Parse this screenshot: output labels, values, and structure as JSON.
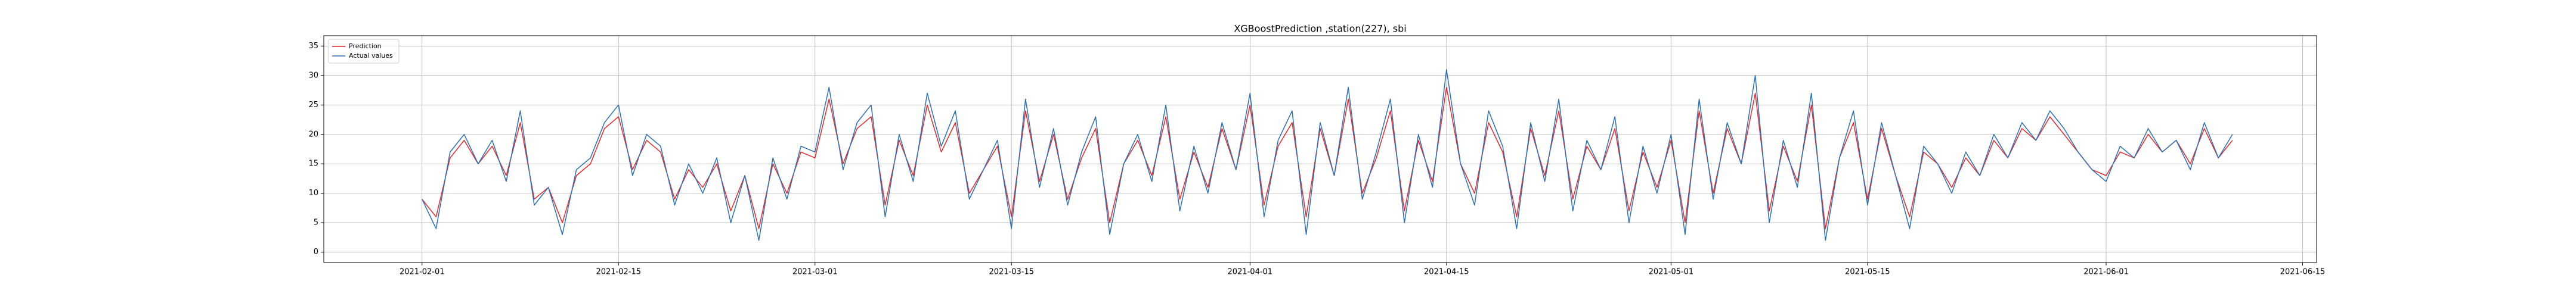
{
  "chart_data": {
    "type": "line",
    "title": "XGBoostPrediction ,station(227), sbi",
    "x": [
      "2021-02-01",
      "2021-02-02",
      "2021-02-03",
      "2021-02-04",
      "2021-02-05",
      "2021-02-06",
      "2021-02-07",
      "2021-02-08",
      "2021-02-09",
      "2021-02-10",
      "2021-02-11",
      "2021-02-12",
      "2021-02-13",
      "2021-02-14",
      "2021-02-15",
      "2021-02-16",
      "2021-02-17",
      "2021-02-18",
      "2021-02-19",
      "2021-02-20",
      "2021-02-21",
      "2021-02-22",
      "2021-02-23",
      "2021-02-24",
      "2021-02-25",
      "2021-02-26",
      "2021-02-27",
      "2021-02-28",
      "2021-03-01",
      "2021-03-02",
      "2021-03-03",
      "2021-03-04",
      "2021-03-05",
      "2021-03-06",
      "2021-03-07",
      "2021-03-08",
      "2021-03-09",
      "2021-03-10",
      "2021-03-11",
      "2021-03-12",
      "2021-03-13",
      "2021-03-14",
      "2021-03-15",
      "2021-03-16",
      "2021-03-17",
      "2021-03-18",
      "2021-03-19",
      "2021-03-20",
      "2021-03-21",
      "2021-03-22",
      "2021-03-23",
      "2021-03-24",
      "2021-03-25",
      "2021-03-26",
      "2021-03-27",
      "2021-03-28",
      "2021-03-29",
      "2021-03-30",
      "2021-03-31",
      "2021-04-01",
      "2021-04-02",
      "2021-04-03",
      "2021-04-04",
      "2021-04-05",
      "2021-04-06",
      "2021-04-07",
      "2021-04-08",
      "2021-04-09",
      "2021-04-10",
      "2021-04-11",
      "2021-04-12",
      "2021-04-13",
      "2021-04-14",
      "2021-04-15",
      "2021-04-16",
      "2021-04-17",
      "2021-04-18",
      "2021-04-19",
      "2021-04-20",
      "2021-04-21",
      "2021-04-22",
      "2021-04-23",
      "2021-04-24",
      "2021-04-25",
      "2021-04-26",
      "2021-04-27",
      "2021-04-28",
      "2021-04-29",
      "2021-04-30",
      "2021-05-01",
      "2021-05-02",
      "2021-05-03",
      "2021-05-04",
      "2021-05-05",
      "2021-05-06",
      "2021-05-07",
      "2021-05-08",
      "2021-05-09",
      "2021-05-10",
      "2021-05-11",
      "2021-05-12",
      "2021-05-13",
      "2021-05-14",
      "2021-05-15",
      "2021-05-16",
      "2021-05-17",
      "2021-05-18",
      "2021-05-19",
      "2021-05-20",
      "2021-05-21",
      "2021-05-22",
      "2021-05-23",
      "2021-05-24",
      "2021-05-25",
      "2021-05-26",
      "2021-05-27",
      "2021-05-28",
      "2021-05-29",
      "2021-05-30",
      "2021-05-31",
      "2021-06-01",
      "2021-06-02",
      "2021-06-03",
      "2021-06-04",
      "2021-06-05",
      "2021-06-06",
      "2021-06-07",
      "2021-06-08",
      "2021-06-09",
      "2021-06-10"
    ],
    "series": [
      {
        "name": "Prediction",
        "color": "#e8262a",
        "values": [
          9,
          6,
          16,
          19,
          15,
          18,
          13,
          22,
          9,
          11,
          5,
          13,
          15,
          21,
          23,
          14,
          19,
          17,
          9,
          14,
          11,
          15,
          7,
          13,
          4,
          15,
          10,
          17,
          16,
          26,
          15,
          21,
          23,
          8,
          19,
          13,
          25,
          17,
          22,
          10,
          14,
          18,
          6,
          24,
          12,
          20,
          9,
          16,
          21,
          5,
          15,
          19,
          13,
          23,
          9,
          17,
          11,
          21,
          14,
          25,
          8,
          18,
          22,
          6,
          21,
          13,
          26,
          10,
          16,
          24,
          7,
          19,
          12,
          28,
          15,
          10,
          22,
          17,
          6,
          21,
          13,
          24,
          9,
          18,
          14,
          21,
          7,
          17,
          11,
          19,
          5,
          24,
          10,
          21,
          15,
          27,
          7,
          18,
          12,
          25,
          4,
          16,
          22,
          9,
          21,
          13,
          6,
          17,
          15,
          11,
          16,
          13,
          19,
          16,
          21,
          19,
          23,
          20,
          17,
          14,
          13,
          17,
          16,
          20,
          17,
          19,
          15,
          21,
          16,
          19
        ]
      },
      {
        "name": "Actual values",
        "color": "#2a6fb5",
        "values": [
          9,
          4,
          17,
          20,
          15,
          19,
          12,
          24,
          8,
          11,
          3,
          14,
          16,
          22,
          25,
          13,
          20,
          18,
          8,
          15,
          10,
          16,
          5,
          13,
          2,
          16,
          9,
          18,
          17,
          28,
          14,
          22,
          25,
          6,
          20,
          12,
          27,
          18,
          24,
          9,
          14,
          19,
          4,
          26,
          11,
          21,
          8,
          17,
          23,
          3,
          15,
          20,
          12,
          25,
          7,
          18,
          10,
          22,
          14,
          27,
          6,
          19,
          24,
          3,
          22,
          13,
          28,
          9,
          17,
          26,
          5,
          20,
          11,
          31,
          15,
          8,
          24,
          18,
          4,
          22,
          12,
          26,
          7,
          19,
          14,
          23,
          5,
          18,
          10,
          20,
          3,
          26,
          9,
          22,
          15,
          30,
          5,
          19,
          11,
          27,
          2,
          16,
          24,
          8,
          22,
          13,
          4,
          18,
          15,
          10,
          17,
          13,
          20,
          16,
          22,
          19,
          24,
          21,
          17,
          14,
          12,
          18,
          16,
          21,
          17,
          19,
          14,
          22,
          16,
          20
        ]
      }
    ],
    "xlim": [
      "2021-01-25",
      "2021-06-16"
    ],
    "xticks": [
      "2021-02-01",
      "2021-02-15",
      "2021-03-01",
      "2021-03-15",
      "2021-04-01",
      "2021-04-15",
      "2021-05-01",
      "2021-05-15",
      "2021-06-01",
      "2021-06-15"
    ],
    "ylim": [
      -1.75,
      36.75
    ],
    "yticks": [
      0,
      5,
      10,
      15,
      20,
      25,
      30,
      35
    ],
    "grid": true,
    "legend": "upper left"
  }
}
